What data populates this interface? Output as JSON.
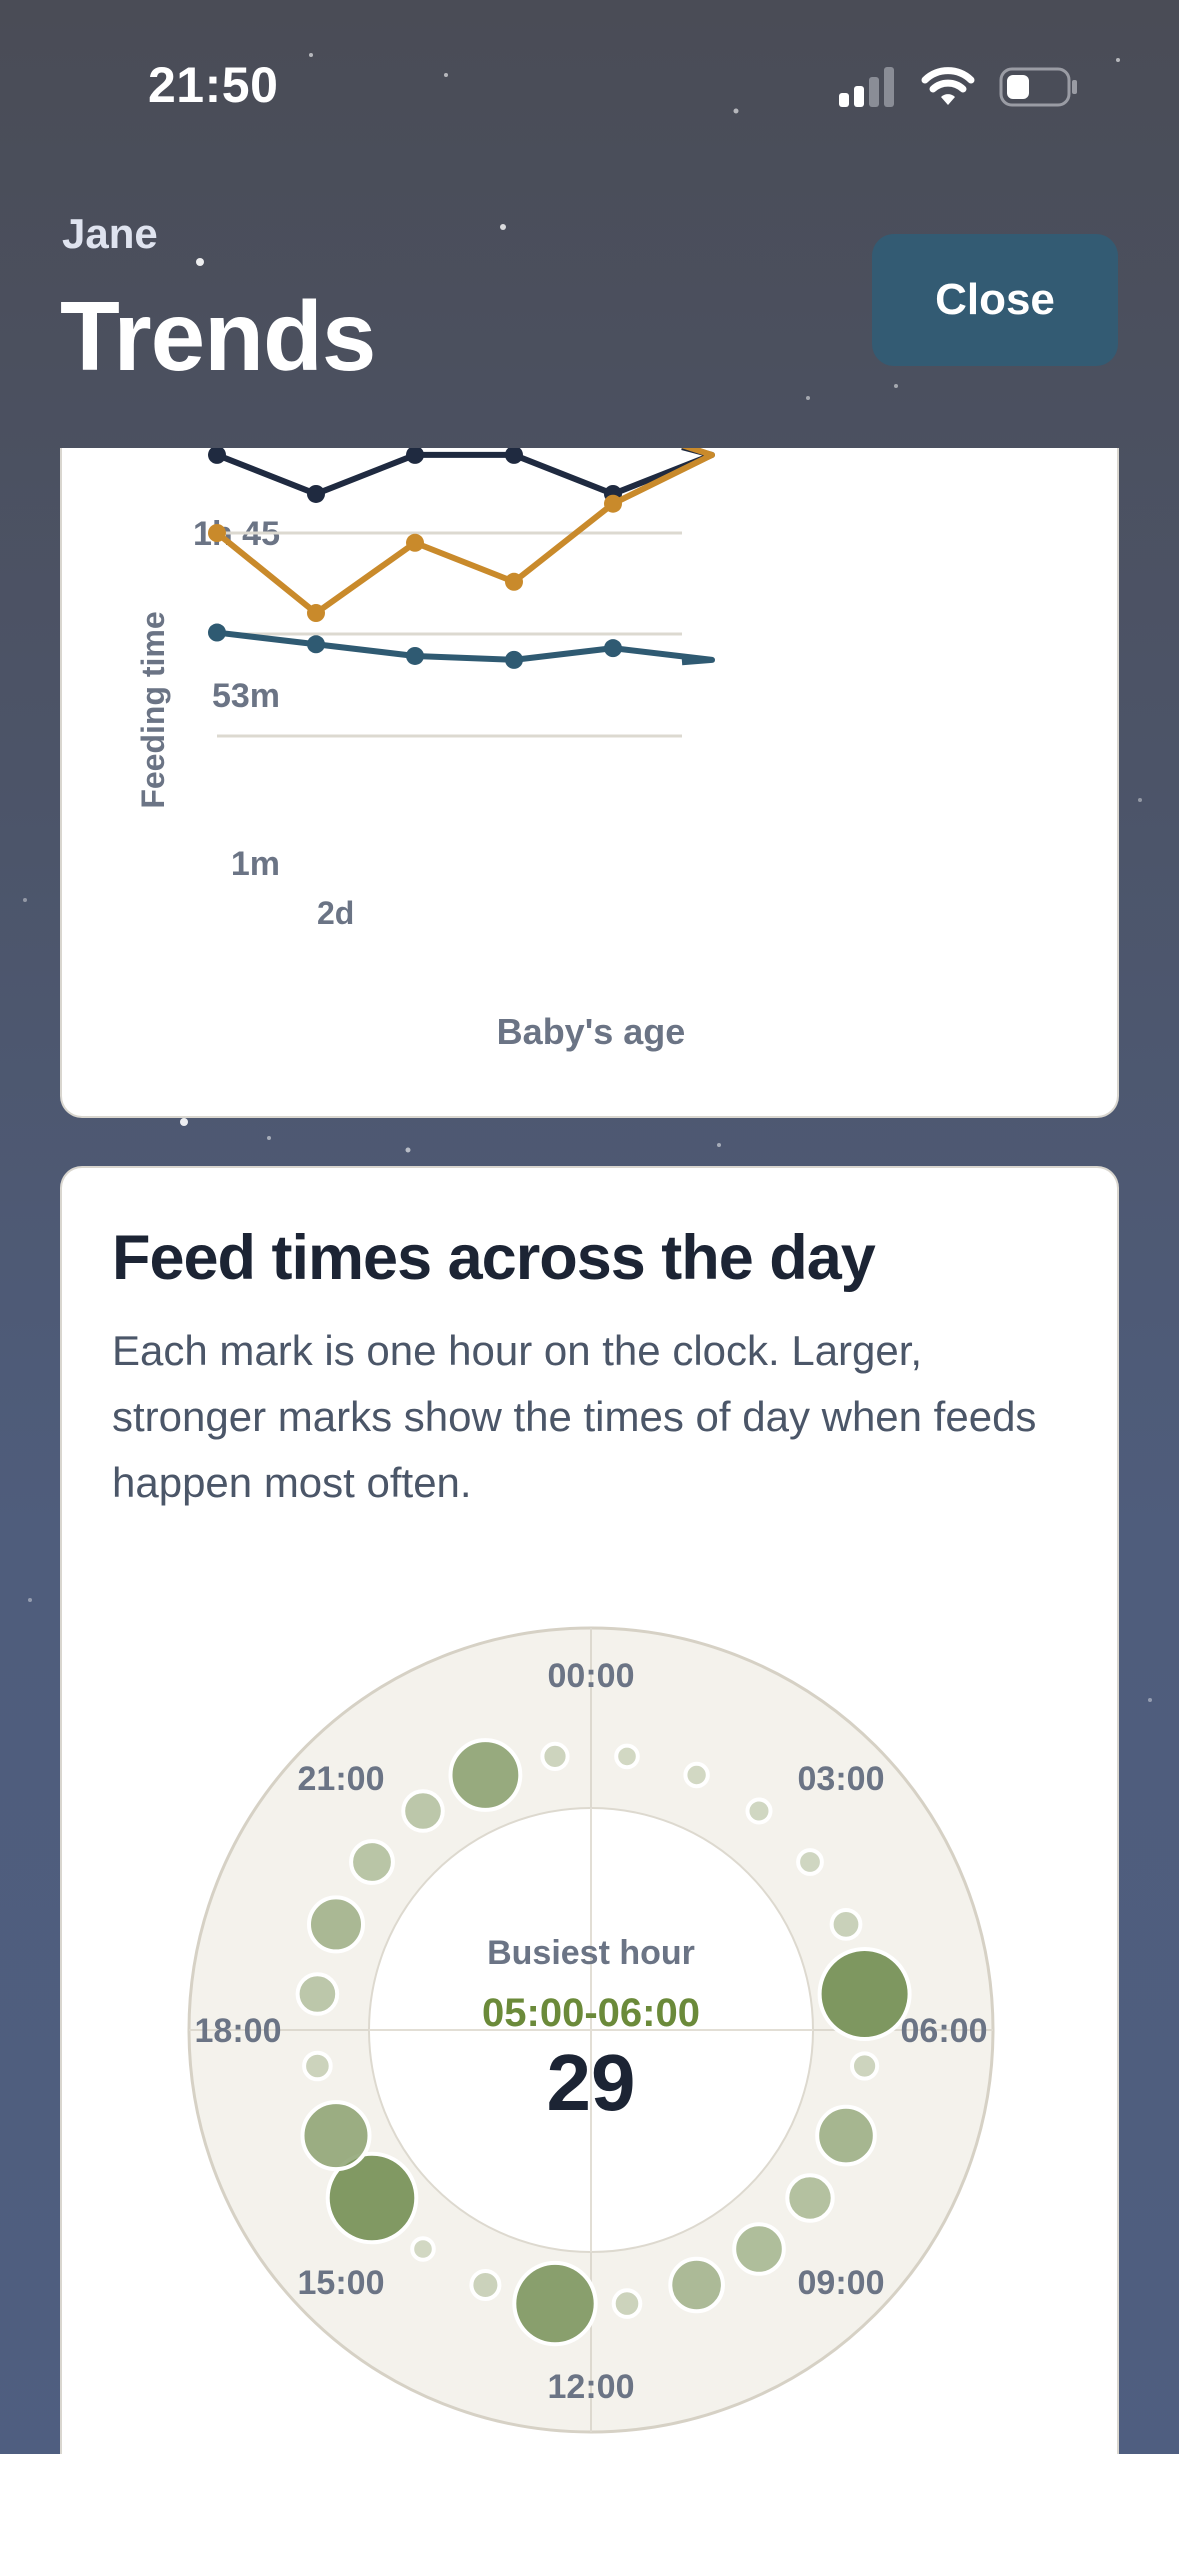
{
  "status_bar": {
    "time": "21:50"
  },
  "header": {
    "subtitle": "Jane",
    "title": "Trends",
    "close_label": "Close"
  },
  "chart_data": [
    {
      "type": "line",
      "title": "",
      "xlabel": "Baby's age",
      "ylabel": "Feeding time",
      "y_ticks": [
        "1h 45",
        "53m",
        "1m"
      ],
      "x_ticks": [
        "2d"
      ],
      "grid": true,
      "series": [
        {
          "color": "#1f2a40",
          "values": [
            145,
            125,
            145,
            145,
            125,
            145
          ]
        },
        {
          "color": "#c98a2b",
          "values": [
            105,
            64,
            100,
            80,
            120,
            145
          ]
        },
        {
          "color": "#2f5a72",
          "values": [
            54,
            48,
            42,
            40,
            46,
            40
          ]
        }
      ]
    },
    {
      "type": "radial",
      "title": "Feed times across the day",
      "description": "Each mark is one hour on the clock. Larger, stronger marks show the times of day when feeds happen most often.",
      "hour_labels": [
        "00:00",
        "03:00",
        "06:00",
        "09:00",
        "12:00",
        "15:00",
        "18:00",
        "21:00"
      ],
      "center_title": "Busiest hour",
      "center_range": "05:00-06:00",
      "center_value": "29",
      "hour_intensity": [
        0.05,
        0.06,
        0.07,
        0.08,
        0.15,
        1.0,
        0.1,
        0.55,
        0.38,
        0.44,
        0.48,
        0.12,
        0.88,
        0.14,
        0.05,
        0.98,
        0.68,
        0.12,
        0.3,
        0.5,
        0.33,
        0.3,
        0.72,
        0.1
      ],
      "mark_color": "#7e9760"
    }
  ]
}
